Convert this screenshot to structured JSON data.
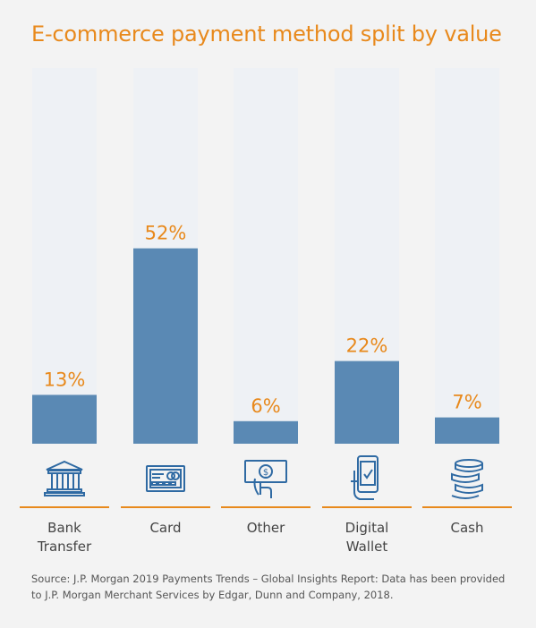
{
  "title": "E-commerce payment method split by value",
  "colors": {
    "accent": "#e8891c",
    "bar": "#5a89b4",
    "track": "#eef1f5",
    "underline": "#e8891c"
  },
  "chart_data": {
    "type": "bar",
    "title": "E-commerce payment method split by value",
    "categories": [
      "Bank Transfer",
      "Card",
      "Other",
      "Digital Wallet",
      "Cash"
    ],
    "category_lines": [
      [
        "Bank",
        "Transfer"
      ],
      [
        "Card"
      ],
      [
        "Other"
      ],
      [
        "Digital",
        "Wallet"
      ],
      [
        "Cash"
      ]
    ],
    "values": [
      13,
      52,
      6,
      22,
      7
    ],
    "value_labels": [
      "13%",
      "52%",
      "6%",
      "22%",
      "7%"
    ],
    "ylim": [
      0,
      100
    ],
    "icons": [
      "bank-icon",
      "card-icon",
      "cash-in-hand-icon",
      "mobile-wallet-icon",
      "coin-stack-icon"
    ]
  },
  "source": "Source: J.P. Morgan 2019 Payments Trends – Global Insights Report: Data has been provided to J.P. Morgan Merchant Services by Edgar, Dunn and Company, 2018."
}
